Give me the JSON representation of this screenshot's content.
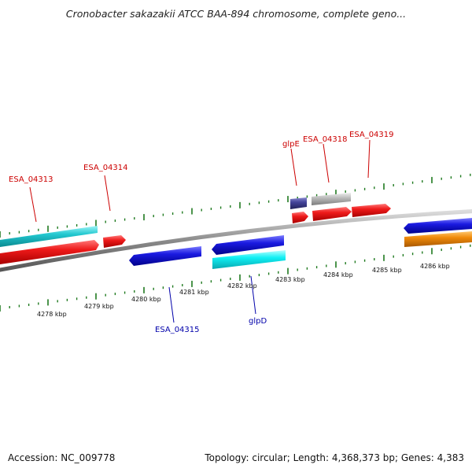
{
  "title": "Cronobacter sakazakii ATCC BAA-894 chromosome, complete geno...",
  "footer": {
    "accession": "Accession: NC_009778",
    "summary": "Topology: circular; Length: 4,368,373 bp; Genes: 4,383"
  },
  "scale_labels": [
    "4278 kbp",
    "4279 kbp",
    "4280 kbp",
    "4281 kbp",
    "4282 kbp",
    "4283 kbp",
    "4284 kbp",
    "4285 kbp",
    "4286 kbp"
  ],
  "gene_labels": {
    "ESA_04313": "ESA_04313",
    "ESA_04314": "ESA_04314",
    "glpE": "glpE",
    "ESA_04318": "ESA_04318",
    "ESA_04319": "ESA_04319",
    "ESA_04315": "ESA_04315",
    "glpD": "glpD"
  },
  "colors": {
    "forward_label": "#cc0000",
    "reverse_label": "#0000aa",
    "red": "#e8141e",
    "cyan": "#22c8d0",
    "blue": "#1a1ae0",
    "navy": "#3a3a8c",
    "gray": "#b8b8b8",
    "orange": "#f08a0a",
    "backbone": "#888888",
    "tick": "#1f7a1f"
  }
}
